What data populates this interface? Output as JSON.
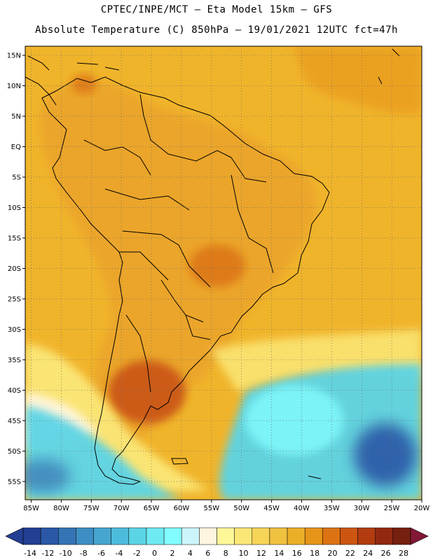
{
  "header": {
    "line1": "CPTEC/INPE/MCT –  Eta Model 15km – GFS",
    "line2": "Absolute Temperature (C) 850hPa – 19/01/2021 12UTC fct=47h"
  },
  "map": {
    "lat_labels": [
      "15N",
      "10N",
      "5N",
      "EQ",
      "5S",
      "10S",
      "15S",
      "20S",
      "25S",
      "30S",
      "35S",
      "40S",
      "45S",
      "50S",
      "55S"
    ],
    "lon_labels": [
      "85W",
      "80W",
      "75W",
      "70W",
      "65W",
      "60W",
      "55W",
      "50W",
      "45W",
      "40W",
      "35W",
      "30W",
      "25W",
      "20W"
    ],
    "lat_range": [
      -58,
      16.5
    ],
    "lon_range": [
      -86,
      -20
    ],
    "gridlines": "dotted",
    "coastline_color": "#000000"
  },
  "colorbar": {
    "labels": [
      "-14",
      "-12",
      "-10",
      "-8",
      "-6",
      "-4",
      "-2",
      "0",
      "2",
      "4",
      "6",
      "8",
      "10",
      "12",
      "14",
      "16",
      "18",
      "20",
      "22",
      "24",
      "26",
      "28"
    ],
    "colors": [
      "#233f93",
      "#2a57a6",
      "#3474b4",
      "#3d8ec4",
      "#46a6cf",
      "#4dbcdc",
      "#5bd4e6",
      "#6eeaf2",
      "#82fcfe",
      "#cbf5fb",
      "#fef5df",
      "#fdf798",
      "#fbe777",
      "#f5d458",
      "#efc13f",
      "#ebaf27",
      "#e6941a",
      "#dc7313",
      "#cc5512",
      "#b23c10",
      "#92280f",
      "#762010"
    ],
    "low_end_color": "#233f93",
    "high_end_color": "#821834"
  },
  "field": {
    "ocean_base": "#f0b42b",
    "land_base": "#eba42a",
    "cold_core": "#2a57a6",
    "cold_mid": "#5bd4e6",
    "cold_edge": "#82fcfe",
    "warm_core": "#c95213",
    "warm_mid": "#dc7313",
    "light_band": "#fbe777",
    "pale_band": "#fef5df"
  }
}
